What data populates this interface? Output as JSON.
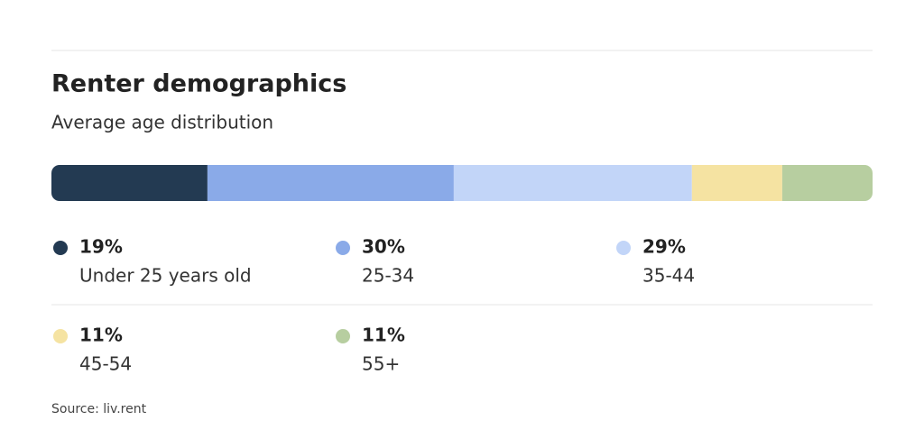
{
  "chart_data": {
    "type": "stacked_bar",
    "title": "Renter demographics",
    "subtitle": "Average age distribution",
    "categories": [
      "Under 25 years old",
      "25-34",
      "35-44",
      "45-54",
      "55+"
    ],
    "values": [
      19,
      30,
      29,
      11,
      11
    ],
    "value_labels": [
      "19%",
      "30%",
      "29%",
      "11%",
      "11%"
    ],
    "colors": [
      "#233a52",
      "#8aaae8",
      "#c2d5f8",
      "#f5e3a2",
      "#b7cea0"
    ],
    "source": "Source: liv.rent"
  }
}
